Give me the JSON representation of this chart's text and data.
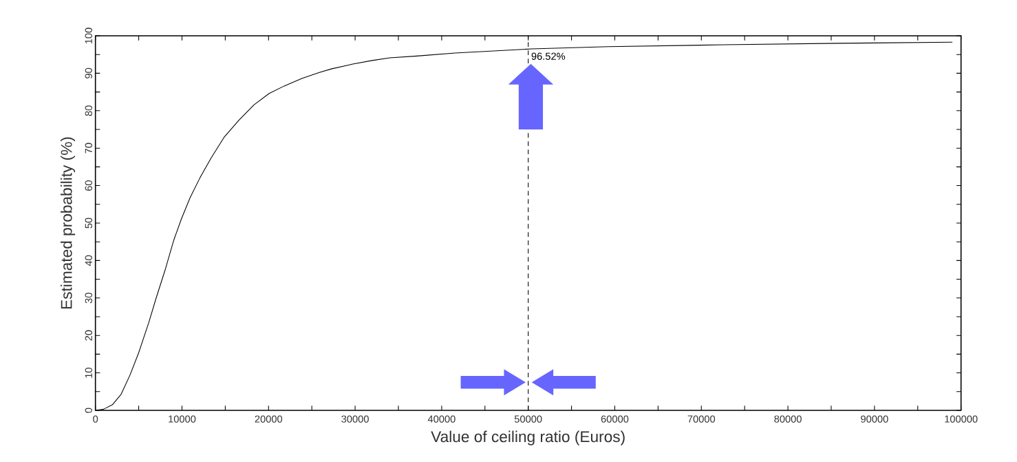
{
  "chart_data": {
    "type": "line",
    "xlabel": "Value of ceiling ratio (Euros)",
    "ylabel": "Estimated probability (%)",
    "x": [
      0,
      940,
      1960,
      2970,
      3990,
      5000,
      6160,
      7030,
      8040,
      9060,
      9930,
      10940,
      12100,
      13400,
      14860,
      16590,
      18330,
      20070,
      21810,
      23840,
      25870,
      27320,
      29640,
      31960,
      34000,
      37130,
      41550,
      50400,
      59250,
      72570,
      85890,
      99000
    ],
    "values": [
      0,
      0.3,
      1.5,
      4.3,
      9.4,
      15.4,
      23.4,
      30.1,
      37.4,
      45.5,
      51.1,
      56.8,
      62.2,
      67.5,
      72.9,
      77.5,
      81.6,
      84.6,
      86.6,
      88.6,
      90.2,
      91.2,
      92.4,
      93.4,
      94.1,
      94.6,
      95.4,
      96.5,
      97.1,
      97.6,
      98.0,
      98.3
    ],
    "color": "#000000",
    "xlim": [
      0,
      100000
    ],
    "ylim": [
      0,
      100
    ],
    "xticks": [
      0,
      {
        "value": 5000,
        "label": null
      },
      10000,
      {
        "value": 15000,
        "label": null
      },
      20000,
      {
        "value": 25000,
        "label": null
      },
      30000,
      {
        "value": 35000,
        "label": null
      },
      40000,
      {
        "value": 45000,
        "label": null
      },
      50000,
      {
        "value": 55000,
        "label": null
      },
      60000,
      {
        "value": 65000,
        "label": null
      },
      70000,
      {
        "value": 75000,
        "label": null
      },
      80000,
      {
        "value": 85000,
        "label": null
      },
      90000,
      {
        "value": 95000,
        "label": null
      },
      100000
    ],
    "yticks": [
      0,
      {
        "value": 5,
        "label": null
      },
      10,
      {
        "value": 15,
        "label": null
      },
      20,
      {
        "value": 25,
        "label": null
      },
      30,
      {
        "value": 35,
        "label": null
      },
      40,
      {
        "value": 45,
        "label": null
      },
      50,
      {
        "value": 55,
        "label": null
      },
      60,
      {
        "value": 65,
        "label": null
      },
      70,
      {
        "value": 75,
        "label": null
      },
      80,
      {
        "value": 85,
        "label": null
      },
      90,
      {
        "value": 95,
        "label": null
      },
      100
    ],
    "ref_lines": [
      {
        "axis": "x",
        "value": 50000,
        "line_style": "dashed"
      }
    ],
    "annotations": [
      {
        "text": "96.52%",
        "x": 50000,
        "y": 96.52
      }
    ]
  }
}
